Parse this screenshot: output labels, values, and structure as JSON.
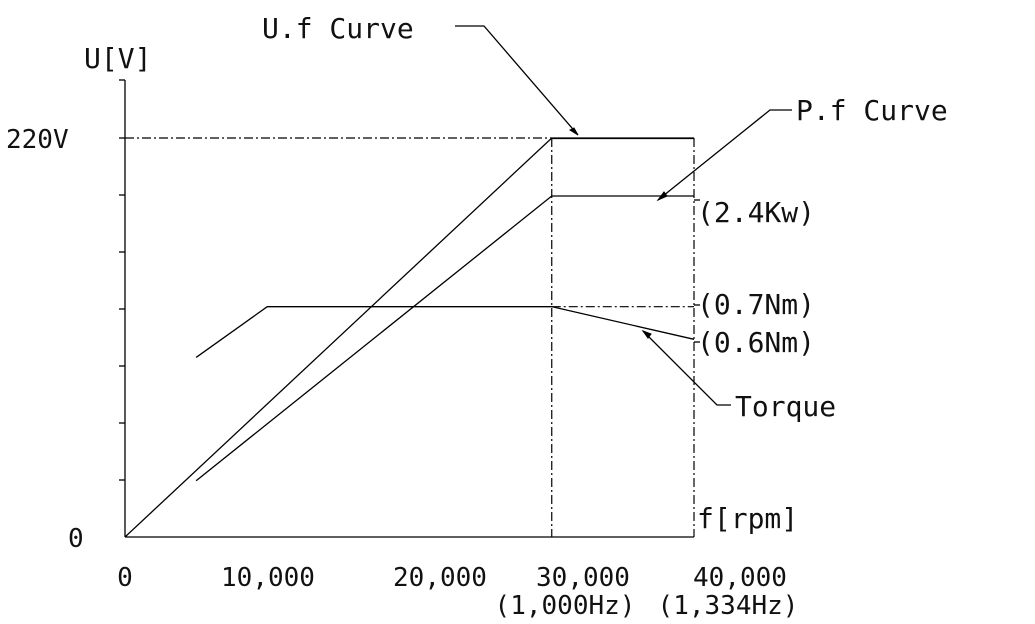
{
  "chart_data": {
    "type": "line",
    "xlabel": "f[rpm]",
    "ylabel": "U[V]",
    "xlim": [
      0,
      40000
    ],
    "ylim": [
      0,
      220
    ],
    "y_tick_count": 7,
    "x_ticks": [
      {
        "value": 0,
        "label": "0"
      },
      {
        "value": 10000,
        "label": "10,000"
      },
      {
        "value": 20000,
        "label": "20,000"
      },
      {
        "value": 30000,
        "label": "30,000",
        "sublabel": "(1,000Hz)"
      },
      {
        "value": 40000,
        "label": "40,000",
        "sublabel": "(1,334Hz)"
      }
    ],
    "y_ticks": [
      {
        "value": 0,
        "label": "0"
      },
      {
        "value": 220,
        "label": "220V"
      }
    ],
    "series": [
      {
        "name": "U.f Curve",
        "x": [
          0,
          30000,
          40000
        ],
        "y": [
          0,
          220,
          220
        ]
      },
      {
        "name": "P.f Curve",
        "x": [
          5000,
          30000,
          40000
        ],
        "y": [
          31,
          188,
          188
        ]
      },
      {
        "name": "Torque",
        "x": [
          5000,
          10000,
          30000,
          40000
        ],
        "y": [
          99,
          127,
          127,
          109
        ]
      }
    ],
    "annotations": [
      {
        "text": "U.f Curve",
        "target_series": 0
      },
      {
        "text": "P.f Curve",
        "target_series": 1
      },
      {
        "text": "(2.4Kw)",
        "target_series": 1
      },
      {
        "text": "(0.7Nm)",
        "target_series": 2
      },
      {
        "text": "(0.6Nm)",
        "target_series": 2
      },
      {
        "text": "Torque",
        "target_series": 2
      }
    ]
  }
}
